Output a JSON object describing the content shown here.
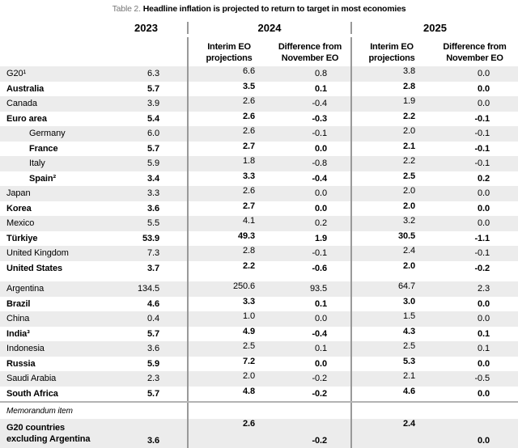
{
  "title": {
    "label": "Table 2.",
    "text": "Headline inflation is projected to return to target in most economies"
  },
  "header": {
    "col_2023": "2023",
    "col_2024": "2024",
    "col_2025": "2025",
    "interim_label": "Interim EO\nprojections",
    "difference_label": "Difference from\nNovember EO"
  },
  "sections": [
    {
      "rows": [
        {
          "label": "G20¹",
          "indent": false,
          "values": [
            "6.3",
            "6.6",
            "0.8",
            "3.8",
            "0.0"
          ]
        },
        {
          "label": "Australia",
          "indent": false,
          "values": [
            "5.7",
            "3.5",
            "0.1",
            "2.8",
            "0.0"
          ]
        },
        {
          "label": "Canada",
          "indent": false,
          "values": [
            "3.9",
            "2.6",
            "-0.4",
            "1.9",
            "0.0"
          ]
        },
        {
          "label": "Euro area",
          "indent": false,
          "values": [
            "5.4",
            "2.6",
            "-0.3",
            "2.2",
            "-0.1"
          ]
        },
        {
          "label": "Germany",
          "indent": true,
          "values": [
            "6.0",
            "2.6",
            "-0.1",
            "2.0",
            "-0.1"
          ]
        },
        {
          "label": "France",
          "indent": true,
          "values": [
            "5.7",
            "2.7",
            "0.0",
            "2.1",
            "-0.1"
          ]
        },
        {
          "label": "Italy",
          "indent": true,
          "values": [
            "5.9",
            "1.8",
            "-0.8",
            "2.2",
            "-0.1"
          ]
        },
        {
          "label": "Spain²",
          "indent": true,
          "values": [
            "3.4",
            "3.3",
            "-0.4",
            "2.5",
            "0.2"
          ]
        },
        {
          "label": "Japan",
          "indent": false,
          "values": [
            "3.3",
            "2.6",
            "0.0",
            "2.0",
            "0.0"
          ]
        },
        {
          "label": "Korea",
          "indent": false,
          "values": [
            "3.6",
            "2.7",
            "0.0",
            "2.0",
            "0.0"
          ]
        },
        {
          "label": "Mexico",
          "indent": false,
          "values": [
            "5.5",
            "4.1",
            "0.2",
            "3.2",
            "0.0"
          ]
        },
        {
          "label": "Türkiye",
          "indent": false,
          "values": [
            "53.9",
            "49.3",
            "1.9",
            "30.5",
            "-1.1"
          ]
        },
        {
          "label": "United Kingdom",
          "indent": false,
          "values": [
            "7.3",
            "2.8",
            "-0.1",
            "2.4",
            "-0.1"
          ]
        },
        {
          "label": "United States",
          "indent": false,
          "values": [
            "3.7",
            "2.2",
            "-0.6",
            "2.0",
            "-0.2"
          ]
        }
      ]
    },
    {
      "rows": [
        {
          "label": "Argentina",
          "indent": false,
          "values": [
            "134.5",
            "250.6",
            "93.5",
            "64.7",
            "2.3"
          ]
        },
        {
          "label": "Brazil",
          "indent": false,
          "values": [
            "4.6",
            "3.3",
            "0.1",
            "3.0",
            "0.0"
          ]
        },
        {
          "label": "China",
          "indent": false,
          "values": [
            "0.4",
            "1.0",
            "0.0",
            "1.5",
            "0.0"
          ]
        },
        {
          "label": "India³",
          "indent": false,
          "values": [
            "5.7",
            "4.9",
            "-0.4",
            "4.3",
            "0.1"
          ]
        },
        {
          "label": "Indonesia",
          "indent": false,
          "values": [
            "3.6",
            "2.5",
            "0.1",
            "2.5",
            "0.1"
          ]
        },
        {
          "label": "Russia",
          "indent": false,
          "values": [
            "5.9",
            "7.2",
            "0.0",
            "5.3",
            "0.0"
          ]
        },
        {
          "label": "Saudi Arabia",
          "indent": false,
          "values": [
            "2.3",
            "2.0",
            "-0.2",
            "2.1",
            "-0.5"
          ]
        },
        {
          "label": "South Africa",
          "indent": false,
          "values": [
            "5.7",
            "4.8",
            "-0.2",
            "4.6",
            "0.0"
          ]
        }
      ]
    }
  ],
  "memorandum": {
    "label": "Memorandum item",
    "row": {
      "label_line1": "G20 countries",
      "label_line2": "excluding Argentina",
      "values": [
        "3.6",
        "2.6",
        "-0.2",
        "2.4",
        "0.0"
      ]
    }
  },
  "colors": {
    "stripe": "#ececec",
    "divider": "#999999",
    "rule": "#b3b3b3",
    "title_prefix": "#767676"
  }
}
